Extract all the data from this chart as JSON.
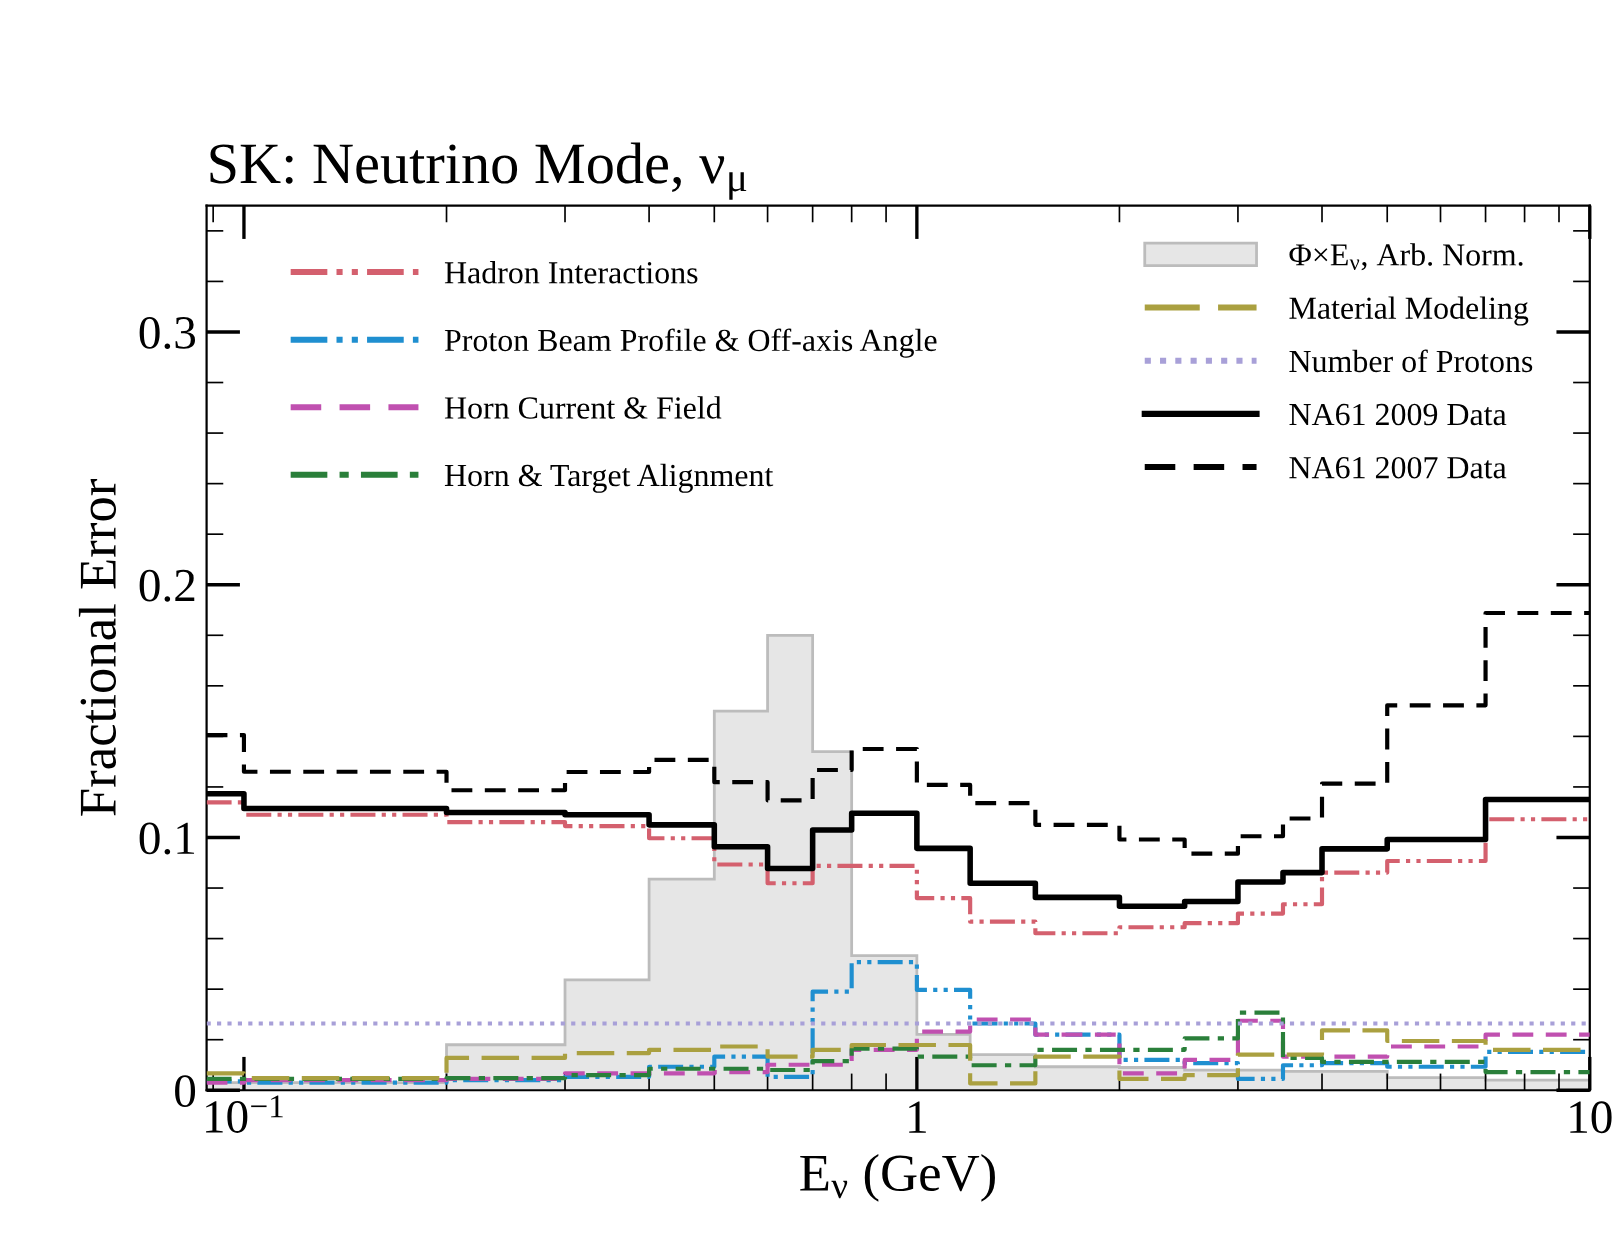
{
  "chart_data": {
    "type": "step",
    "title": "SK: Neutrino Mode, ν$_{μ}$",
    "xlabel": "E$_{ν}$ (GeV)",
    "ylabel": "Fractional Error",
    "x": [
      0.088,
      0.1,
      0.2,
      0.3,
      0.4,
      0.5,
      0.6,
      0.7,
      0.8,
      1.0,
      1.2,
      1.5,
      2.0,
      2.5,
      3.0,
      3.5,
      4.0,
      5.0,
      7.0,
      10
    ],
    "bins": [
      0.088,
      0.1,
      0.2,
      0.3,
      0.4,
      0.5,
      0.6,
      0.7,
      0.8,
      1.0,
      1.2,
      1.5,
      2.0,
      2.5,
      3.0,
      3.5,
      4.0,
      5.0,
      7.0,
      10
    ],
    "series": [
      {
        "name": "Hadron Interactions",
        "color": "#d4606e",
        "line_style": "dashdotdot",
        "values": [
          0.1139,
          0.109,
          0.1061,
          0.1045,
          0.0997,
          0.0893,
          0.0819,
          0.0888,
          0.0888,
          0.076,
          0.0667,
          0.0621,
          0.0645,
          0.0661,
          0.0699,
          0.0736,
          0.0861,
          0.0907,
          0.1072,
          0.1072
        ]
      },
      {
        "name": "Proton Beam Profile & Off-axis Angle",
        "color": "#1f8fd0",
        "line_style": "dashdotdot",
        "values": [
          0.0035,
          0.003,
          0.004,
          0.0053,
          0.0093,
          0.0133,
          0.0053,
          0.039,
          0.0507,
          0.0397,
          0.0264,
          0.022,
          0.012,
          0.0107,
          0.0045,
          0.0099,
          0.0107,
          0.0093,
          0.0152,
          0.0152
        ]
      },
      {
        "name": "Horn Current & Field",
        "color": "#c050b0",
        "line_style": "dashed",
        "values": [
          0.003,
          0.004,
          0.0045,
          0.0067,
          0.0067,
          0.0072,
          0.0101,
          0.0101,
          0.016,
          0.0232,
          0.028,
          0.022,
          0.0067,
          0.012,
          0.0275,
          0.0133,
          0.0133,
          0.0173,
          0.022,
          0.022
        ]
      },
      {
        "name": "Horn & Target Alignment",
        "color": "#2a7f3a",
        "line_style": "dashdot",
        "values": [
          0.0045,
          0.0045,
          0.0048,
          0.006,
          0.0085,
          0.0085,
          0.008,
          0.0115,
          0.0165,
          0.0133,
          0.0099,
          0.016,
          0.016,
          0.0205,
          0.0307,
          0.0128,
          0.0112,
          0.0112,
          0.0072,
          0.0072
        ]
      },
      {
        "name": "Φ×E$_{ν}$, Arb. Norm.",
        "type": "histogram",
        "color": "#e6e6e6",
        "values": [
          0.003,
          0.003,
          0.018,
          0.0437,
          0.0835,
          0.15,
          0.18,
          0.134,
          0.0533,
          0.0221,
          0.0141,
          0.0093,
          0.009,
          0.008,
          0.008,
          0.0075,
          0.0075,
          0.005,
          0.004
        ]
      },
      {
        "name": "Material Modeling",
        "color": "#aaa040",
        "line_style": "longdash",
        "values": [
          0.0067,
          0.0048,
          0.0128,
          0.0147,
          0.016,
          0.0173,
          0.0133,
          0.016,
          0.0179,
          0.0179,
          0.0027,
          0.0133,
          0.0045,
          0.006,
          0.0141,
          0.0141,
          0.0237,
          0.0195,
          0.016,
          0.016
        ]
      },
      {
        "name": "Number of Protons",
        "color": "#a8a0d8",
        "line_style": "dotted",
        "values": [
          0.0264,
          0.0264,
          0.0264,
          0.0264,
          0.0264,
          0.0264,
          0.0264,
          0.0264,
          0.0264,
          0.0264,
          0.0264,
          0.0264,
          0.0264,
          0.0264,
          0.0264,
          0.0264,
          0.0264,
          0.0264,
          0.0264,
          0.0264
        ]
      },
      {
        "name": "NA61 2009 Data",
        "color": "#000000",
        "line_style": "solid",
        "values": [
          0.1173,
          0.1115,
          0.1099,
          0.109,
          0.105,
          0.0963,
          0.0877,
          0.103,
          0.1096,
          0.0957,
          0.0819,
          0.0763,
          0.0728,
          0.0747,
          0.0824,
          0.0861,
          0.0955,
          0.0992,
          0.115,
          0.115
        ]
      },
      {
        "name": "NA61 2007 Data",
        "color": "#000000",
        "line_style": "dashed",
        "values": [
          0.1405,
          0.126,
          0.1187,
          0.1259,
          0.1307,
          0.1219,
          0.1147,
          0.1267,
          0.135,
          0.1208,
          0.1136,
          0.105,
          0.0992,
          0.0936,
          0.1005,
          0.1075,
          0.1213,
          0.1523,
          0.1888,
          0.1888
        ]
      }
    ],
    "log": "x",
    "xlim": [
      0.088,
      10
    ],
    "ylim": [
      0,
      0.35
    ],
    "xticks": [
      {
        "value": 0.1,
        "label": "10$^{−1}$"
      },
      1,
      10
    ],
    "yticks": [
      0,
      0.1,
      0.2,
      0.3
    ],
    "grid": false,
    "legend": "top"
  }
}
